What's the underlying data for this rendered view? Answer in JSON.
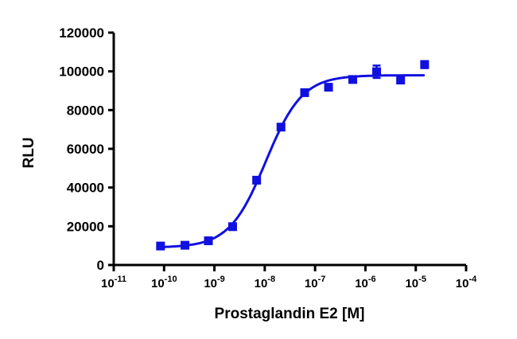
{
  "chart_data": {
    "type": "scatter",
    "xlabel": "Prostaglandin E2 [M]",
    "ylabel": "RLU",
    "x_scale": "log",
    "xlim": [
      1e-11,
      0.0001
    ],
    "ylim": [
      0,
      120000
    ],
    "x_ticks": [
      {
        "base": "10",
        "exp": "-11"
      },
      {
        "base": "10",
        "exp": "-10"
      },
      {
        "base": "10",
        "exp": "-9"
      },
      {
        "base": "10",
        "exp": "-8"
      },
      {
        "base": "10",
        "exp": "-7"
      },
      {
        "base": "10",
        "exp": "-6"
      },
      {
        "base": "10",
        "exp": "-5"
      },
      {
        "base": "10",
        "exp": "-4"
      }
    ],
    "y_ticks": [
      "0",
      "20000",
      "40000",
      "60000",
      "80000",
      "100000",
      "120000"
    ],
    "series": [
      {
        "color": "#1010e0",
        "points": [
          {
            "x": 8.5e-11,
            "y": 9800,
            "err": 500
          },
          {
            "x": 2.6e-10,
            "y": 10200,
            "err": 500
          },
          {
            "x": 7.6e-10,
            "y": 12500,
            "err": 500
          },
          {
            "x": 2.3e-09,
            "y": 19800,
            "err": 600
          },
          {
            "x": 6.9e-09,
            "y": 43800,
            "err": 800
          },
          {
            "x": 2.1e-08,
            "y": 71200,
            "err": 900
          },
          {
            "x": 6.2e-08,
            "y": 89000,
            "err": 800
          },
          {
            "x": 1.85e-07,
            "y": 91800,
            "err": 800
          },
          {
            "x": 5.6e-07,
            "y": 95800,
            "err": 800
          },
          {
            "x": 1.67e-06,
            "y": 99800,
            "err": 3200
          },
          {
            "x": 5e-06,
            "y": 95500,
            "err": 800
          },
          {
            "x": 1.5e-05,
            "y": 103500,
            "err": 1800
          }
        ],
        "fit": {
          "model": "sigmoidal dose-response",
          "bottom": 9000,
          "top": 98000,
          "ec50": 1.05e-08,
          "hill": 1.2
        }
      }
    ],
    "grid": false,
    "legend": "none"
  }
}
